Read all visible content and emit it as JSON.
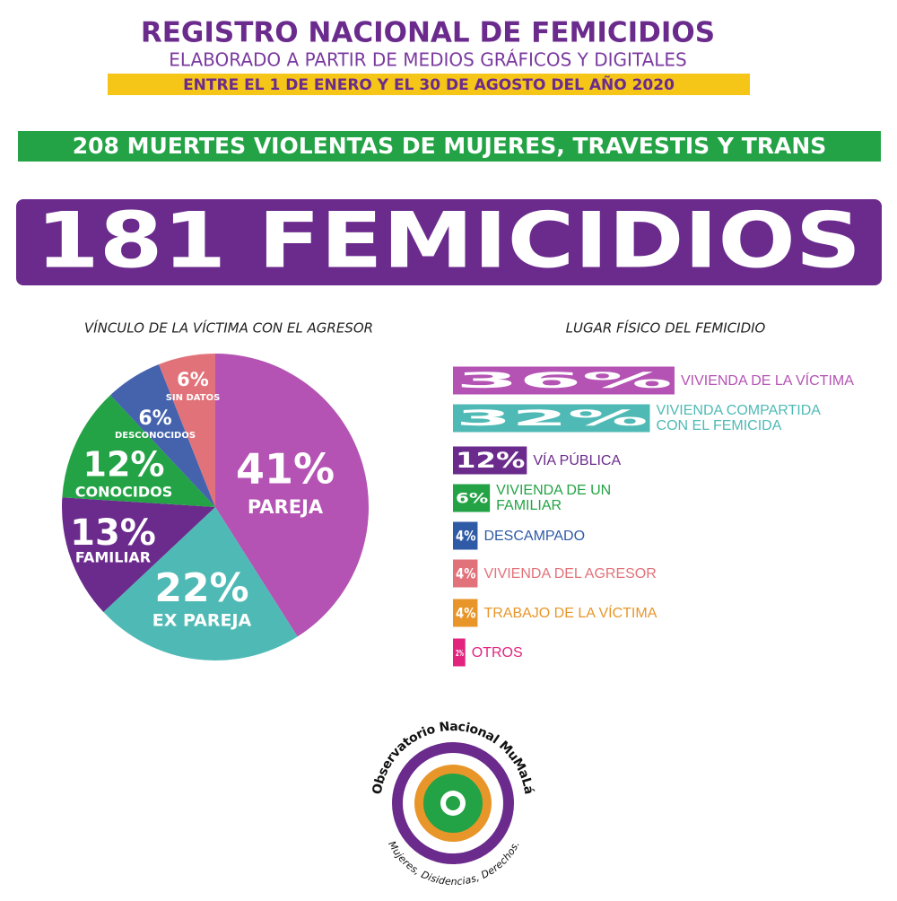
{
  "header": {
    "title": "REGISTRO NACIONAL DE FEMICIDIOS",
    "subtitle": "ELABORADO A PARTIR DE MEDIOS GRÁFICOS Y DIGITALES",
    "period": "ENTRE EL 1 DE ENERO Y EL 30 DE AGOSTO DEL AÑO 2020",
    "deaths": "208 MUERTES VIOLENTAS DE MUJERES, TRAVESTIS Y TRANS",
    "femicides": "181 FEMICIDIOS"
  },
  "chart_data": [
    {
      "type": "pie",
      "title": "VÍNCULO DE LA VÍCTIMA CON EL AGRESOR",
      "categories": [
        "PAREJA",
        "EX PAREJA",
        "FAMILIAR",
        "CONOCIDOS",
        "DESCONOCIDOS",
        "SIN DATOS"
      ],
      "values": [
        41,
        22,
        13,
        12,
        6,
        6
      ],
      "value_labels": [
        "41%",
        "22%",
        "13%",
        "12%",
        "6%",
        "6%"
      ],
      "colors": [
        "#b453b3",
        "#4fbab5",
        "#6b2b8d",
        "#23a345",
        "#4563ad",
        "#e2727a"
      ]
    },
    {
      "type": "hbar",
      "title": "LUGAR FÍSICO DEL FEMICIDIO",
      "categories": [
        "VIVIENDA DE LA VÍCTIMA",
        "VIVIENDA COMPARTIDA CON EL FEMICIDA",
        "VÍA PÚBLICA",
        "VIVIENDA DE UN FAMILIAR",
        "DESCAMPADO",
        "VIVIENDA DEL AGRESOR",
        "TRABAJO DE LA VÍCTIMA",
        "OTROS"
      ],
      "values": [
        36,
        32,
        12,
        6,
        4,
        4,
        4,
        2
      ],
      "value_labels": [
        "36%",
        "32%",
        "12%",
        "6%",
        "4%",
        "4%",
        "4%",
        "2%"
      ],
      "colors": [
        "#b453b3",
        "#4fbab5",
        "#6b2b8d",
        "#23a345",
        "#2f5aa6",
        "#e2727a",
        "#e8962a",
        "#e2247f"
      ]
    }
  ],
  "logo": {
    "name": "Observatorio Nacional MuMaLá",
    "tagline": "Mujeres, Disidencias, Derechos."
  }
}
